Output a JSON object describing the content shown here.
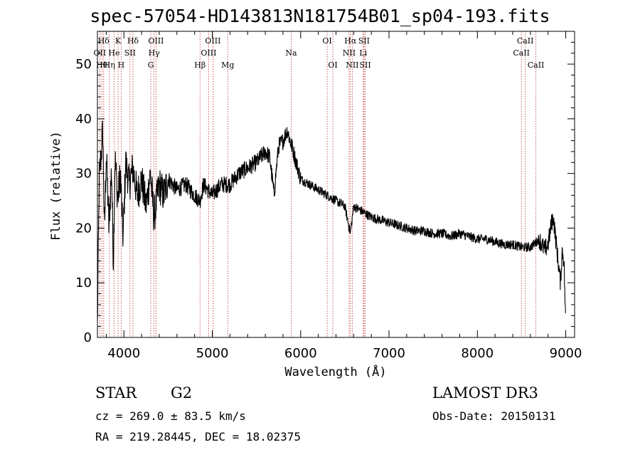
{
  "chart_data": {
    "type": "line",
    "title": "spec-57054-HD143813N181754B01_sp04-193.fits",
    "xlabel": "Wavelength (Å)",
    "ylabel": "Flux (relative)",
    "xlim": [
      3700,
      9100
    ],
    "ylim": [
      0,
      56
    ],
    "x_ticks": [
      4000,
      5000,
      6000,
      7000,
      8000,
      9000
    ],
    "y_ticks": [
      0,
      10,
      20,
      30,
      40,
      50
    ],
    "series": [
      {
        "name": "spectrum",
        "x": [
          3700,
          3720,
          3740,
          3760,
          3780,
          3800,
          3830,
          3860,
          3880,
          3900,
          3930,
          3960,
          3990,
          4020,
          4060,
          4100,
          4150,
          4200,
          4250,
          4300,
          4340,
          4400,
          4450,
          4500,
          4600,
          4700,
          4800,
          4861,
          4900,
          5000,
          5100,
          5200,
          5300,
          5400,
          5500,
          5600,
          5650,
          5700,
          5720,
          5750,
          5800,
          5850,
          5880,
          5900,
          5950,
          6000,
          6100,
          6200,
          6300,
          6400,
          6500,
          6563,
          6600,
          6700,
          6800,
          6900,
          7000,
          7100,
          7200,
          7300,
          7400,
          7500,
          7600,
          7700,
          7800,
          7900,
          8000,
          8100,
          8200,
          8300,
          8400,
          8500,
          8600,
          8700,
          8760,
          8800,
          8840,
          8860,
          8900,
          8940,
          8960,
          8980,
          9000
        ],
        "y": [
          2,
          29,
          33,
          38,
          19,
          34,
          20,
          31,
          14,
          33,
          25,
          30,
          18,
          32,
          28,
          31,
          26,
          29,
          24,
          30,
          22,
          28,
          26,
          29,
          27,
          28,
          26,
          25,
          28,
          26,
          28,
          28,
          30,
          31,
          32,
          34,
          33,
          26,
          30,
          35,
          36,
          38,
          36,
          35,
          32,
          29,
          28,
          27,
          26,
          25,
          24,
          19,
          24,
          23,
          22,
          21.5,
          21,
          20.5,
          20,
          19.5,
          19.5,
          19,
          19,
          18.5,
          19,
          18.5,
          18,
          18,
          17.5,
          17,
          17,
          16.5,
          16.5,
          18,
          16,
          17,
          21,
          22,
          16,
          10,
          16,
          14,
          2
        ]
      }
    ],
    "line_markers": [
      {
        "label": "OII",
        "x": 3727,
        "row": 2
      },
      {
        "label": "Hθ",
        "x": 3750,
        "row": 3
      },
      {
        "label": "Hδ",
        "x": 3771,
        "row": 1
      },
      {
        "label": "Hη",
        "x": 3835,
        "row": 3
      },
      {
        "label": "He",
        "x": 3889,
        "row": 2
      },
      {
        "label": "K",
        "x": 3934,
        "row": 1
      },
      {
        "label": "H",
        "x": 3969,
        "row": 3
      },
      {
        "label": "SII",
        "x": 4069,
        "row": 2
      },
      {
        "label": "Hδ",
        "x": 4102,
        "row": 1
      },
      {
        "label": "G",
        "x": 4304,
        "row": 3
      },
      {
        "label": "Hγ",
        "x": 4341,
        "row": 2
      },
      {
        "label": "OIII",
        "x": 4363,
        "row": 1
      },
      {
        "label": "Hβ",
        "x": 4861,
        "row": 3
      },
      {
        "label": "OIII",
        "x": 4959,
        "row": 2
      },
      {
        "label": "OIII",
        "x": 5007,
        "row": 1
      },
      {
        "label": "Mg",
        "x": 5175,
        "row": 3
      },
      {
        "label": "Na",
        "x": 5893,
        "row": 2
      },
      {
        "label": "OI",
        "x": 6300,
        "row": 1
      },
      {
        "label": "OI",
        "x": 6364,
        "row": 3
      },
      {
        "label": "NII",
        "x": 6548,
        "row": 2
      },
      {
        "label": "Hα",
        "x": 6563,
        "row": 1
      },
      {
        "label": "NII",
        "x": 6584,
        "row": 3
      },
      {
        "label": "Li",
        "x": 6708,
        "row": 2
      },
      {
        "label": "SII",
        "x": 6717,
        "row": 1
      },
      {
        "label": "SII",
        "x": 6731,
        "row": 3
      },
      {
        "label": "CaII",
        "x": 8498,
        "row": 2
      },
      {
        "label": "CaII",
        "x": 8542,
        "row": 1
      },
      {
        "label": "CaII",
        "x": 8662,
        "row": 3
      }
    ],
    "marker_color": "#c03030"
  },
  "info": {
    "class": "STAR",
    "subclass": "G2",
    "cz": "cz = 269.0 ± 83.5 km/s",
    "radec": "RA = 219.28445, DEC =  18.02375",
    "survey": "LAMOST DR3",
    "obs_date": "Obs-Date: 20150131"
  }
}
